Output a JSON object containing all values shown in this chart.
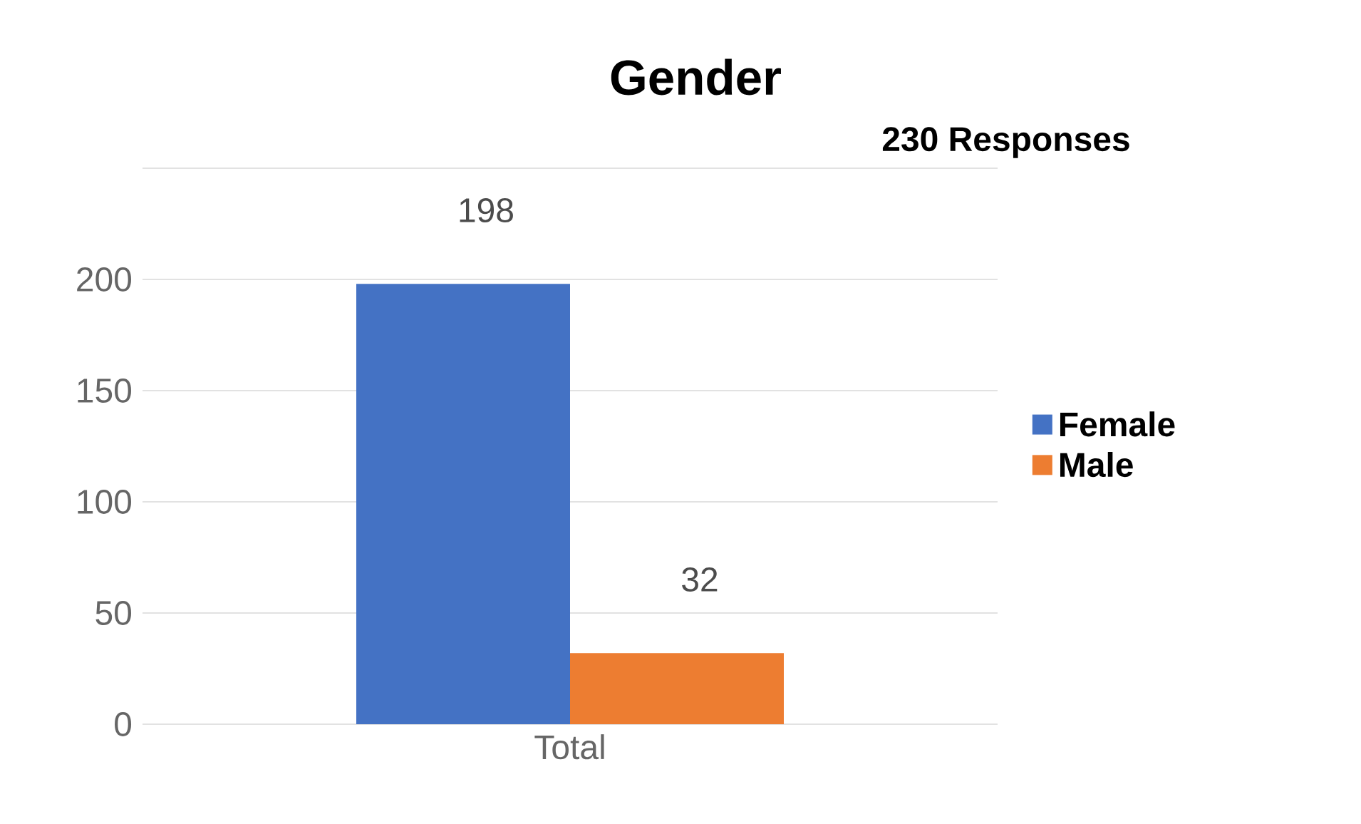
{
  "chart_data": {
    "type": "bar",
    "title": "Gender",
    "subtitle": "230 Responses",
    "categories": [
      "Total"
    ],
    "series": [
      {
        "name": "Female",
        "color": "#4472c4",
        "values": [
          198
        ]
      },
      {
        "name": "Male",
        "color": "#ed7d31",
        "values": [
          32
        ]
      }
    ],
    "ylim": [
      0,
      250
    ],
    "yticks": [
      0,
      50,
      100,
      150,
      200,
      {
        "value": 250,
        "label": null
      }
    ],
    "grid": "y",
    "legend": "right",
    "data_labels": true
  }
}
